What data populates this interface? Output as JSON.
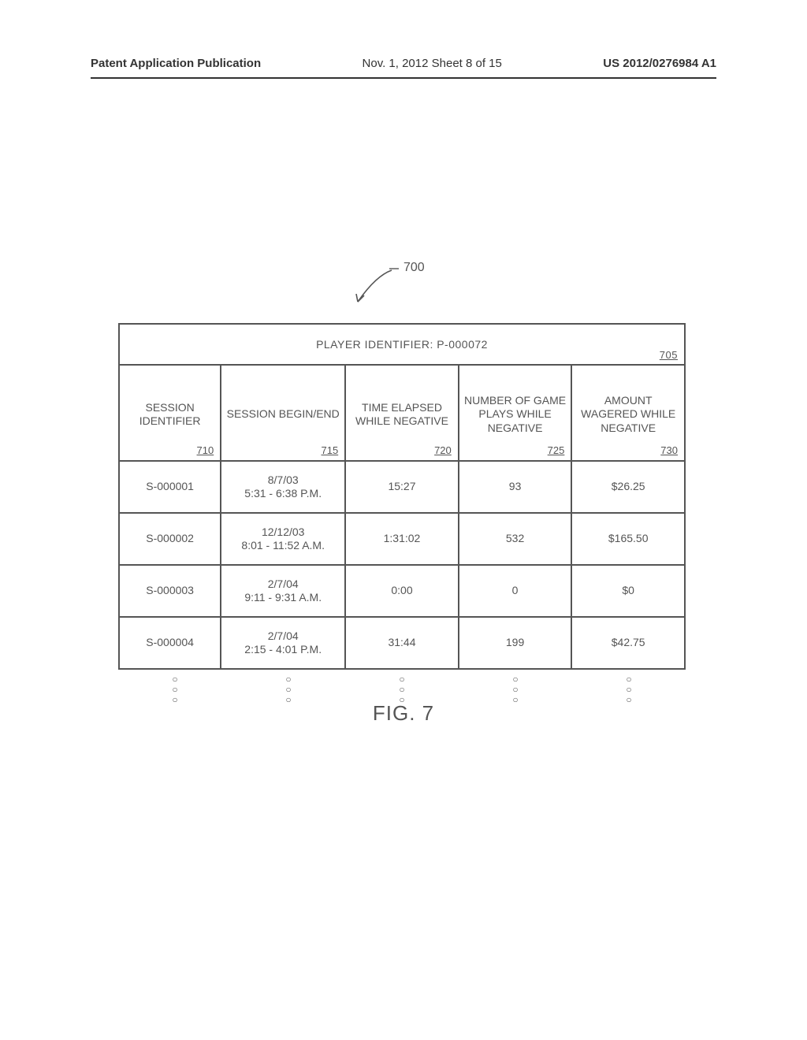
{
  "header": {
    "left": "Patent Application Publication",
    "mid": "Nov. 1, 2012  Sheet 8 of 15",
    "right": "US 2012/0276984 A1"
  },
  "callout": {
    "label": "700"
  },
  "table": {
    "title": "PLAYER IDENTIFIER: P-000072",
    "title_ref": "705",
    "columns": [
      {
        "label": "SESSION IDENTIFIER",
        "ref": "710"
      },
      {
        "label": "SESSION BEGIN/END",
        "ref": "715"
      },
      {
        "label": "TIME ELAPSED WHILE NEGATIVE",
        "ref": "720"
      },
      {
        "label": "NUMBER OF GAME PLAYS WHILE NEGATIVE",
        "ref": "725"
      },
      {
        "label": "AMOUNT WAGERED WHILE NEGATIVE",
        "ref": "730"
      }
    ],
    "rows": [
      [
        "S-000001",
        "8/7/03\n5:31 - 6:38 P.M.",
        "15:27",
        "93",
        "$26.25"
      ],
      [
        "S-000002",
        "12/12/03\n8:01 - 11:52 A.M.",
        "1:31:02",
        "532",
        "$165.50"
      ],
      [
        "S-000003",
        "2/7/04\n9:11 - 9:31 A.M.",
        "0:00",
        "0",
        "$0"
      ],
      [
        "S-000004",
        "2/7/04\n2:15 - 4:01 P.M.",
        "31:44",
        "199",
        "$42.75"
      ]
    ]
  },
  "caption": "FIG. 7",
  "style": {
    "border_color": "#555555",
    "text_color": "#555555",
    "header_text_color": "#333333",
    "background": "#ffffff",
    "col_widths_pct": [
      18,
      22,
      20,
      20,
      20
    ]
  }
}
